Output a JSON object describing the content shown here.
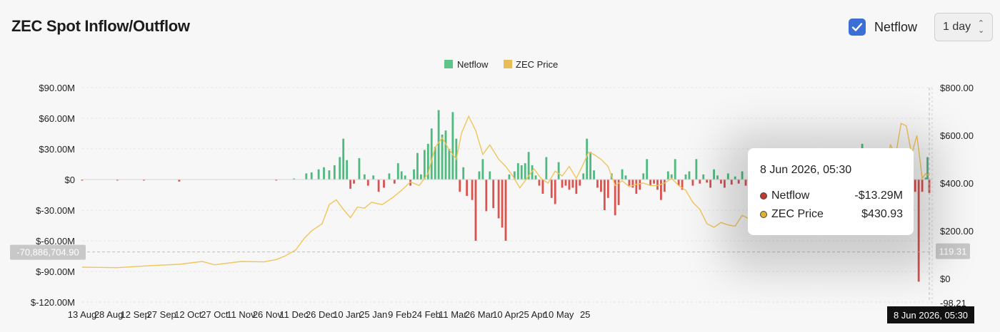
{
  "header": {
    "title": "ZEC Spot Inflow/Outflow",
    "checkbox_label": "Netflow",
    "checkbox_checked": true,
    "interval_value": "1 day"
  },
  "colors": {
    "inflow": "#4fba7f",
    "outflow": "#d9534f",
    "price": "#f0c55a",
    "legend_netflow": "#5fc48a",
    "legend_price": "#e8bd55",
    "checkbox": "#3b6fd6"
  },
  "tooltip": {
    "date": "8 Jun 2026, 05:30",
    "rows": [
      {
        "label": "Netflow",
        "value": "-$13.29M",
        "color": "#c0392b"
      },
      {
        "label": "ZEC Price",
        "value": "$430.93",
        "color": "#e0b030"
      }
    ]
  },
  "crosshair": {
    "left_label": "-70,886,704.90",
    "right_label": "119.31",
    "x_label": "8 Jun 2026, 05:30"
  },
  "chart_data": {
    "type": "bar",
    "title": "",
    "legend": [
      "Netflow",
      "ZEC Price"
    ],
    "legend_position": "top-center",
    "grid": true,
    "x_tick_labels": [
      "13 Aug",
      "28 Aug",
      "12 Sep",
      "27 Sep",
      "12 Oct",
      "27 Oct",
      "11 Nov",
      "26 Nov",
      "11 Dec",
      "26 Dec",
      "10 Jan",
      "25 Jan",
      "9 Feb",
      "24 Feb",
      "11 Mar",
      "26 Mar",
      "10 Apr",
      "25 Apr",
      "10 May",
      "25"
    ],
    "y_left": {
      "ticks": [
        90,
        60,
        30,
        0,
        -30,
        -60,
        -90,
        -120
      ],
      "labels": [
        "$90.00M",
        "$60.00M",
        "$30.00M",
        "$0",
        "$-30.00M",
        "$-60.00M",
        "$-90.00M",
        "$-120.00M"
      ],
      "range": [
        -120,
        90
      ],
      "unit": "$M"
    },
    "y_right": {
      "ticks": [
        800,
        600,
        400,
        200,
        0
      ],
      "labels": [
        "$800.00",
        "$600.00",
        "$400.00",
        "$200.00",
        "$0"
      ],
      "range": [
        -98.21,
        800
      ],
      "bottom_label": "-98.21"
    },
    "netflow_days": [
      [
        0,
        -1
      ],
      [
        20,
        -1
      ],
      [
        35,
        -1
      ],
      [
        55,
        -2
      ],
      [
        110,
        -1
      ],
      [
        120,
        1
      ],
      [
        127,
        6
      ],
      [
        130,
        7
      ],
      [
        134,
        10
      ],
      [
        137,
        12
      ],
      [
        140,
        9
      ],
      [
        143,
        14
      ],
      [
        146,
        22
      ],
      [
        148,
        40
      ],
      [
        150,
        19
      ],
      [
        152,
        -9
      ],
      [
        154,
        -4
      ],
      [
        157,
        21
      ],
      [
        160,
        5
      ],
      [
        162,
        -6
      ],
      [
        165,
        4
      ],
      [
        168,
        -12
      ],
      [
        171,
        -8
      ],
      [
        174,
        6
      ],
      [
        177,
        -4
      ],
      [
        179,
        16
      ],
      [
        181,
        8
      ],
      [
        183,
        4
      ],
      [
        186,
        -6
      ],
      [
        188,
        10
      ],
      [
        190,
        26
      ],
      [
        192,
        5
      ],
      [
        194,
        29
      ],
      [
        196,
        35
      ],
      [
        198,
        50
      ],
      [
        200,
        32
      ],
      [
        202,
        68
      ],
      [
        204,
        44
      ],
      [
        206,
        48
      ],
      [
        208,
        30
      ],
      [
        210,
        66
      ],
      [
        212,
        40
      ],
      [
        214,
        -12
      ],
      [
        216,
        12
      ],
      [
        218,
        -16
      ],
      [
        221,
        -20
      ],
      [
        223,
        -60
      ],
      [
        225,
        8
      ],
      [
        227,
        20
      ],
      [
        229,
        -31
      ],
      [
        231,
        8
      ],
      [
        233,
        -28
      ],
      [
        236,
        -38
      ],
      [
        238,
        -47
      ],
      [
        240,
        -60
      ],
      [
        242,
        5
      ],
      [
        245,
        8
      ],
      [
        247,
        16
      ],
      [
        249,
        14
      ],
      [
        251,
        16
      ],
      [
        253,
        27
      ],
      [
        255,
        14
      ],
      [
        257,
        4
      ],
      [
        259,
        -6
      ],
      [
        261,
        -14
      ],
      [
        263,
        22
      ],
      [
        266,
        -18
      ],
      [
        268,
        -24
      ],
      [
        270,
        17
      ],
      [
        272,
        -8
      ],
      [
        274,
        -6
      ],
      [
        276,
        -10
      ],
      [
        278,
        -8
      ],
      [
        280,
        -14
      ],
      [
        282,
        -6
      ],
      [
        284,
        6
      ],
      [
        286,
        40
      ],
      [
        288,
        27
      ],
      [
        290,
        9
      ],
      [
        292,
        -8
      ],
      [
        294,
        -12
      ],
      [
        296,
        -30
      ],
      [
        298,
        -18
      ],
      [
        300,
        6
      ],
      [
        302,
        -35
      ],
      [
        304,
        -25
      ],
      [
        306,
        10
      ],
      [
        308,
        4
      ],
      [
        310,
        -6
      ],
      [
        312,
        -8
      ],
      [
        314,
        -14
      ],
      [
        316,
        -10
      ],
      [
        318,
        6
      ],
      [
        320,
        20
      ],
      [
        322,
        -6
      ],
      [
        324,
        -4
      ],
      [
        326,
        -10
      ],
      [
        328,
        -20
      ],
      [
        330,
        -12
      ],
      [
        332,
        8
      ],
      [
        334,
        5
      ],
      [
        336,
        20
      ],
      [
        338,
        -6
      ],
      [
        340,
        -10
      ],
      [
        342,
        5
      ],
      [
        344,
        8
      ],
      [
        346,
        -6
      ],
      [
        348,
        20
      ],
      [
        350,
        -4
      ],
      [
        352,
        5
      ],
      [
        354,
        -3
      ],
      [
        356,
        -8
      ],
      [
        358,
        10
      ],
      [
        360,
        4
      ],
      [
        362,
        -4
      ],
      [
        364,
        -8
      ],
      [
        366,
        6
      ],
      [
        368,
        -5
      ],
      [
        370,
        3
      ],
      [
        372,
        -4
      ],
      [
        374,
        8
      ],
      [
        376,
        -6
      ],
      [
        378,
        -3
      ],
      [
        380,
        4
      ],
      [
        382,
        -2
      ],
      [
        384,
        6
      ],
      [
        386,
        -8
      ],
      [
        388,
        4
      ],
      [
        390,
        -2
      ],
      [
        392,
        10
      ],
      [
        394,
        -4
      ],
      [
        396,
        5
      ],
      [
        398,
        -3
      ],
      [
        400,
        -6
      ],
      [
        402,
        7
      ],
      [
        404,
        -3
      ],
      [
        406,
        4
      ],
      [
        408,
        -6
      ],
      [
        410,
        -7
      ],
      [
        412,
        -5
      ],
      [
        414,
        -4
      ],
      [
        416,
        -3
      ],
      [
        418,
        4
      ],
      [
        420,
        -6
      ],
      [
        422,
        6
      ],
      [
        424,
        4
      ],
      [
        426,
        -2
      ],
      [
        428,
        12
      ],
      [
        430,
        16
      ],
      [
        432,
        -3
      ],
      [
        434,
        22
      ],
      [
        436,
        28
      ],
      [
        438,
        7
      ],
      [
        440,
        3
      ],
      [
        442,
        35
      ],
      [
        444,
        4
      ],
      [
        446,
        -4
      ],
      [
        448,
        14
      ],
      [
        450,
        -6
      ],
      [
        452,
        4
      ],
      [
        454,
        -2
      ],
      [
        456,
        5
      ],
      [
        458,
        8
      ],
      [
        460,
        6
      ],
      [
        462,
        -8
      ],
      [
        464,
        -7
      ],
      [
        466,
        12
      ],
      [
        468,
        4
      ],
      [
        470,
        8
      ],
      [
        472,
        -12
      ],
      [
        474,
        -100
      ],
      [
        476,
        -12
      ],
      [
        478,
        2
      ],
      [
        479,
        22
      ],
      [
        480,
        -13.29
      ]
    ],
    "price_days": [
      [
        0,
        48
      ],
      [
        20,
        46
      ],
      [
        40,
        55
      ],
      [
        55,
        60
      ],
      [
        68,
        72
      ],
      [
        75,
        58
      ],
      [
        90,
        72
      ],
      [
        103,
        70
      ],
      [
        110,
        80
      ],
      [
        115,
        95
      ],
      [
        121,
        120
      ],
      [
        126,
        170
      ],
      [
        130,
        200
      ],
      [
        136,
        230
      ],
      [
        140,
        310
      ],
      [
        144,
        330
      ],
      [
        148,
        290
      ],
      [
        152,
        255
      ],
      [
        156,
        300
      ],
      [
        160,
        295
      ],
      [
        164,
        320
      ],
      [
        170,
        310
      ],
      [
        176,
        340
      ],
      [
        181,
        370
      ],
      [
        186,
        405
      ],
      [
        191,
        390
      ],
      [
        196,
        440
      ],
      [
        200,
        550
      ],
      [
        204,
        590
      ],
      [
        208,
        540
      ],
      [
        212,
        500
      ],
      [
        215,
        610
      ],
      [
        219,
        680
      ],
      [
        223,
        620
      ],
      [
        227,
        520
      ],
      [
        231,
        560
      ],
      [
        236,
        500
      ],
      [
        240,
        470
      ],
      [
        244,
        430
      ],
      [
        248,
        380
      ],
      [
        252,
        420
      ],
      [
        256,
        460
      ],
      [
        260,
        420
      ],
      [
        264,
        400
      ],
      [
        268,
        450
      ],
      [
        272,
        430
      ],
      [
        276,
        470
      ],
      [
        280,
        420
      ],
      [
        284,
        480
      ],
      [
        287,
        530
      ],
      [
        290,
        520
      ],
      [
        294,
        500
      ],
      [
        298,
        470
      ],
      [
        302,
        390
      ],
      [
        306,
        410
      ],
      [
        310,
        385
      ],
      [
        314,
        395
      ],
      [
        318,
        400
      ],
      [
        322,
        390
      ],
      [
        326,
        390
      ],
      [
        330,
        400
      ],
      [
        334,
        420
      ],
      [
        338,
        390
      ],
      [
        342,
        370
      ],
      [
        346,
        320
      ],
      [
        350,
        290
      ],
      [
        354,
        230
      ],
      [
        358,
        215
      ],
      [
        362,
        235
      ],
      [
        366,
        225
      ],
      [
        370,
        220
      ],
      [
        374,
        265
      ],
      [
        378,
        250
      ],
      [
        382,
        230
      ],
      [
        386,
        255
      ],
      [
        390,
        250
      ],
      [
        394,
        240
      ],
      [
        398,
        220
      ],
      [
        402,
        240
      ],
      [
        406,
        210
      ],
      [
        410,
        205
      ],
      [
        414,
        225
      ],
      [
        418,
        210
      ],
      [
        422,
        235
      ],
      [
        426,
        225
      ],
      [
        430,
        215
      ],
      [
        434,
        260
      ],
      [
        438,
        270
      ],
      [
        442,
        265
      ],
      [
        446,
        240
      ],
      [
        450,
        280
      ],
      [
        454,
        400
      ],
      [
        458,
        560
      ],
      [
        461,
        520
      ],
      [
        464,
        650
      ],
      [
        467,
        640
      ],
      [
        470,
        520
      ],
      [
        473,
        600
      ],
      [
        476,
        420
      ],
      [
        478,
        440
      ],
      [
        480,
        430.93
      ]
    ]
  }
}
